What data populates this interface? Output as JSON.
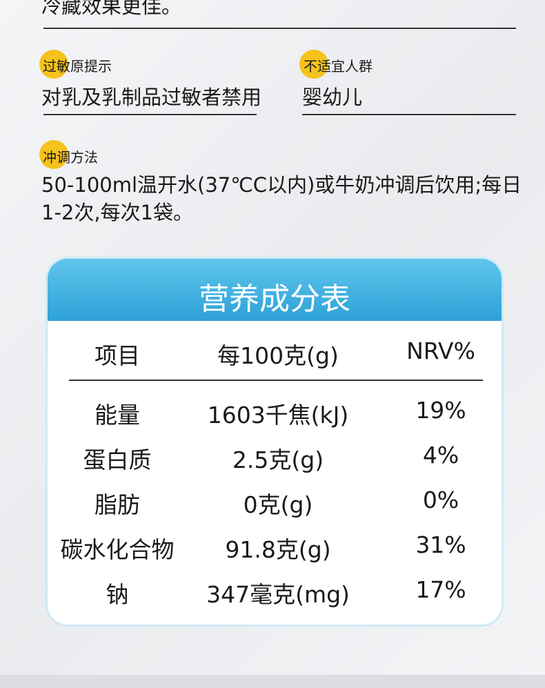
{
  "intro_tail": "冷藏效果更佳。",
  "allergen": {
    "label": "过敏原提示",
    "value": "对乳及乳制品过敏者禁用"
  },
  "unsuitable": {
    "label": "不适宜人群",
    "value": "婴幼儿"
  },
  "preparation": {
    "label": "冲调方法",
    "value": "50-100ml温开水(37℃C以内)或牛奶冲调后饮用;每日1-2次,每次1袋。"
  },
  "table": {
    "title": "营养成分表",
    "header": [
      "项目",
      "每100克(g)",
      "NRV%"
    ],
    "rows": [
      [
        "能量",
        "1603千焦(kJ)",
        "19%"
      ],
      [
        "蛋白质",
        "2.5克(g)",
        "4%"
      ],
      [
        "脂肪",
        "0克(g)",
        "0%"
      ],
      [
        "碳水化合物",
        "91.8克(g)",
        "31%"
      ],
      [
        "钠",
        "347毫克(mg)",
        "17%"
      ]
    ]
  }
}
